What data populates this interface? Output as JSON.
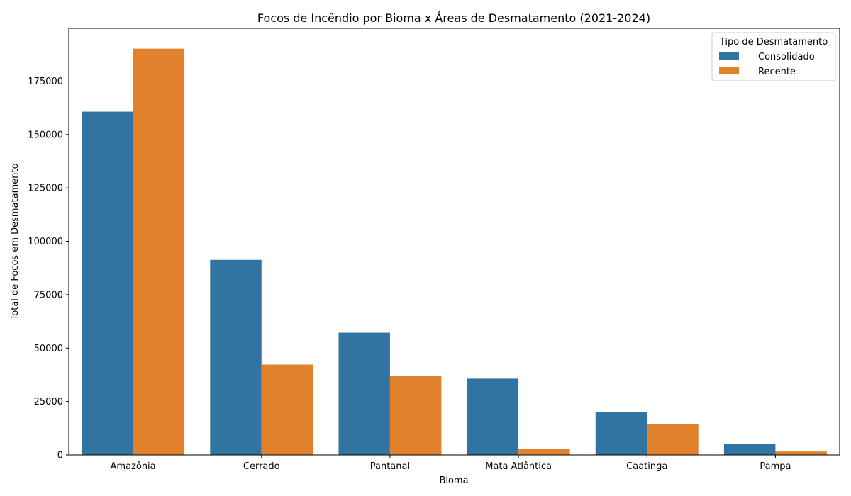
{
  "chart_data": {
    "type": "bar",
    "title": "Focos de Incêndio por Bioma x Áreas de Desmatamento (2021-2024)",
    "xlabel": "Bioma",
    "ylabel": "Total de Focos em Desmatamento",
    "categories": [
      "Amazônia",
      "Cerrado",
      "Pantanal",
      "Mata Atlântica",
      "Caatinga",
      "Pampa"
    ],
    "series": [
      {
        "name": "Consolidado",
        "color": "#3274a1",
        "values": [
          160700,
          91300,
          57200,
          35700,
          20000,
          5200
        ]
      },
      {
        "name": "Recente",
        "color": "#e1812c",
        "values": [
          190200,
          42300,
          37100,
          2700,
          14600,
          1600
        ]
      }
    ],
    "ylim": [
      0,
      199700
    ],
    "yticks": [
      0,
      25000,
      50000,
      75000,
      100000,
      125000,
      150000,
      175000
    ],
    "grid": false,
    "legend": {
      "title": "Tipo de Desmatamento",
      "placement": "top-right"
    }
  }
}
